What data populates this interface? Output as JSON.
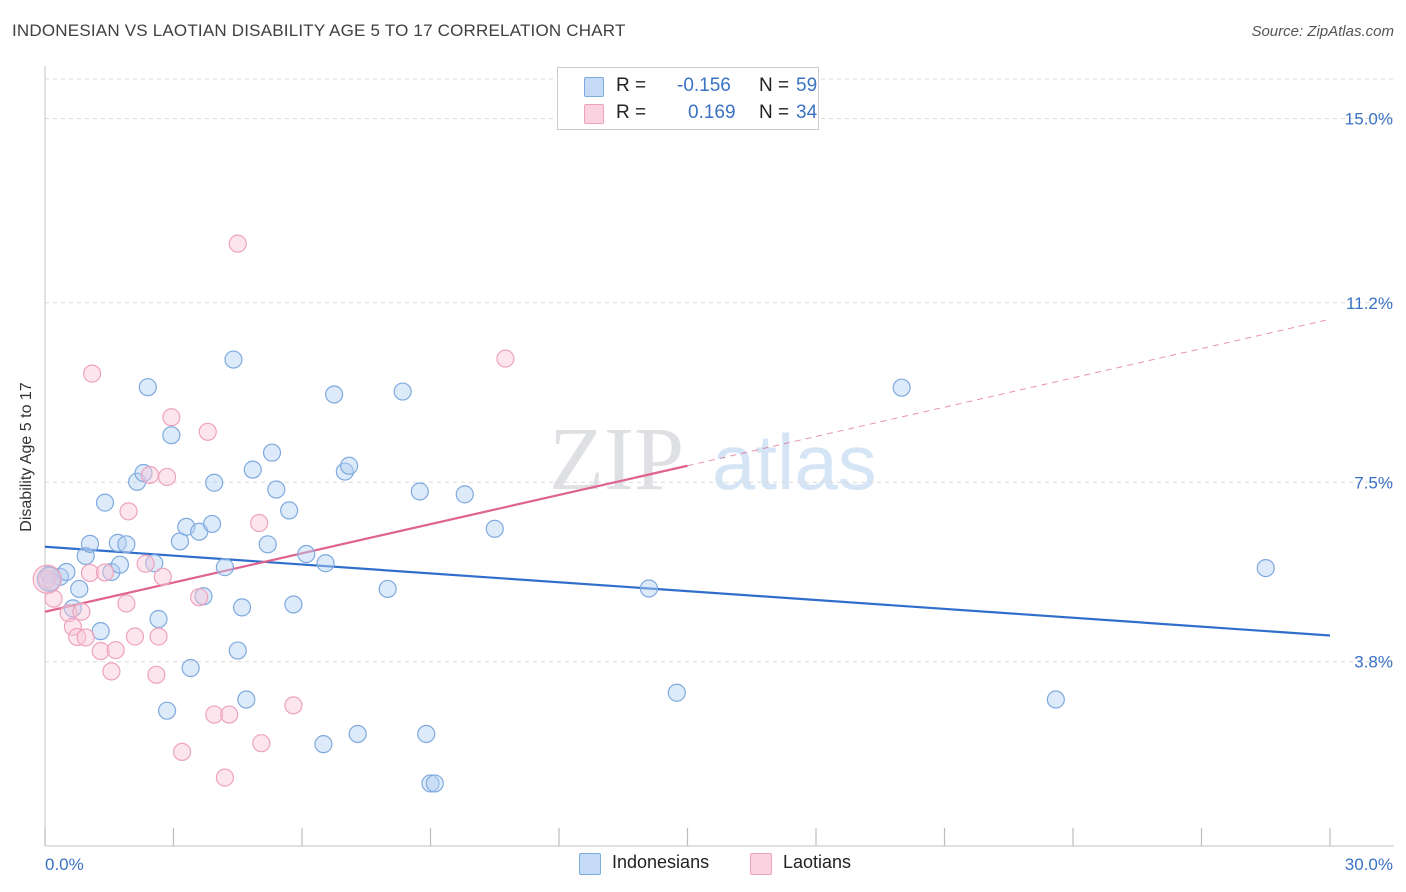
{
  "chart_data": {
    "type": "scatter",
    "title": "INDONESIAN VS LAOTIAN DISABILITY AGE 5 TO 17 CORRELATION CHART",
    "source": "Source: ZipAtlas.com",
    "xlabel": "",
    "ylabel": "Disability Age 5 to 17",
    "xlim": [
      0,
      30
    ],
    "ylim": [
      0,
      16
    ],
    "x_tick_labels": [
      "0.0%",
      "30.0%"
    ],
    "y_ticks": [
      3.8,
      7.5,
      11.2,
      15.0
    ],
    "y_tick_labels": [
      "3.8%",
      "7.5%",
      "11.2%",
      "15.0%"
    ],
    "grid": true,
    "watermark": "ZIPatlas",
    "legend_position": "top-center",
    "series": [
      {
        "name": "Indonesians",
        "color": "#8fb8ea",
        "line_color": "#2f6fcb",
        "R": "-0.156",
        "N": "59",
        "trend": {
          "x0": 0,
          "y0": 6.17,
          "x1": 30,
          "y1": 4.34
        },
        "points": [
          [
            0.1,
            5.6
          ],
          [
            0.15,
            5.45
          ],
          [
            0.35,
            5.55
          ],
          [
            0.5,
            5.65
          ],
          [
            0.65,
            4.9
          ],
          [
            0.8,
            5.3
          ],
          [
            0.95,
            5.98
          ],
          [
            1.05,
            6.23
          ],
          [
            1.3,
            4.43
          ],
          [
            1.4,
            7.08
          ],
          [
            1.55,
            5.65
          ],
          [
            1.7,
            6.25
          ],
          [
            1.75,
            5.8
          ],
          [
            1.9,
            6.22
          ],
          [
            2.15,
            7.51
          ],
          [
            2.3,
            7.69
          ],
          [
            2.4,
            9.46
          ],
          [
            2.55,
            5.83
          ],
          [
            2.65,
            4.68
          ],
          [
            2.85,
            2.79
          ],
          [
            2.95,
            8.47
          ],
          [
            3.15,
            6.28
          ],
          [
            3.3,
            6.58
          ],
          [
            3.4,
            3.67
          ],
          [
            3.6,
            6.48
          ],
          [
            3.7,
            5.15
          ],
          [
            3.9,
            6.64
          ],
          [
            3.95,
            7.49
          ],
          [
            4.2,
            5.75
          ],
          [
            4.4,
            10.03
          ],
          [
            4.5,
            4.03
          ],
          [
            4.6,
            4.92
          ],
          [
            4.7,
            3.02
          ],
          [
            4.85,
            7.76
          ],
          [
            5.2,
            6.22
          ],
          [
            5.3,
            8.11
          ],
          [
            5.4,
            7.35
          ],
          [
            5.7,
            6.92
          ],
          [
            5.8,
            4.98
          ],
          [
            6.1,
            6.02
          ],
          [
            6.5,
            2.1
          ],
          [
            6.55,
            5.83
          ],
          [
            6.75,
            9.31
          ],
          [
            7.0,
            7.72
          ],
          [
            7.1,
            7.84
          ],
          [
            7.3,
            2.31
          ],
          [
            8.0,
            5.3
          ],
          [
            8.35,
            9.37
          ],
          [
            8.75,
            7.31
          ],
          [
            8.9,
            2.31
          ],
          [
            9.0,
            1.29
          ],
          [
            9.1,
            1.29
          ],
          [
            9.8,
            7.25
          ],
          [
            10.5,
            6.54
          ],
          [
            14.1,
            5.31
          ],
          [
            14.75,
            3.16
          ],
          [
            20.0,
            9.45
          ],
          [
            23.6,
            3.02
          ],
          [
            28.5,
            5.73
          ]
        ]
      },
      {
        "name": "Laotians",
        "color": "#f5b3c9",
        "line_color": "#e0638f",
        "R": "0.169",
        "N": "34",
        "trend": {
          "x0": 0,
          "y0": 4.83,
          "x1": 15.0,
          "y1": 7.84,
          "dash_to": {
            "x": 30,
            "y": 10.86
          }
        },
        "points": [
          [
            0.05,
            5.5
          ],
          [
            0.2,
            5.1
          ],
          [
            0.55,
            4.8
          ],
          [
            0.65,
            4.52
          ],
          [
            0.75,
            4.31
          ],
          [
            0.85,
            4.83
          ],
          [
            0.95,
            4.3
          ],
          [
            1.05,
            5.63
          ],
          [
            1.1,
            9.74
          ],
          [
            1.3,
            4.02
          ],
          [
            1.4,
            5.64
          ],
          [
            1.55,
            3.6
          ],
          [
            1.65,
            4.04
          ],
          [
            1.9,
            5.0
          ],
          [
            1.95,
            6.9
          ],
          [
            2.1,
            4.32
          ],
          [
            2.35,
            5.82
          ],
          [
            2.45,
            7.65
          ],
          [
            2.6,
            3.53
          ],
          [
            2.65,
            4.32
          ],
          [
            2.75,
            5.55
          ],
          [
            2.85,
            7.61
          ],
          [
            2.95,
            8.84
          ],
          [
            3.2,
            1.94
          ],
          [
            3.6,
            5.13
          ],
          [
            3.8,
            8.54
          ],
          [
            3.95,
            2.71
          ],
          [
            4.2,
            1.41
          ],
          [
            4.3,
            2.71
          ],
          [
            4.5,
            12.42
          ],
          [
            5.0,
            6.66
          ],
          [
            5.05,
            2.12
          ],
          [
            5.8,
            2.9
          ],
          [
            10.75,
            10.05
          ]
        ]
      }
    ]
  }
}
